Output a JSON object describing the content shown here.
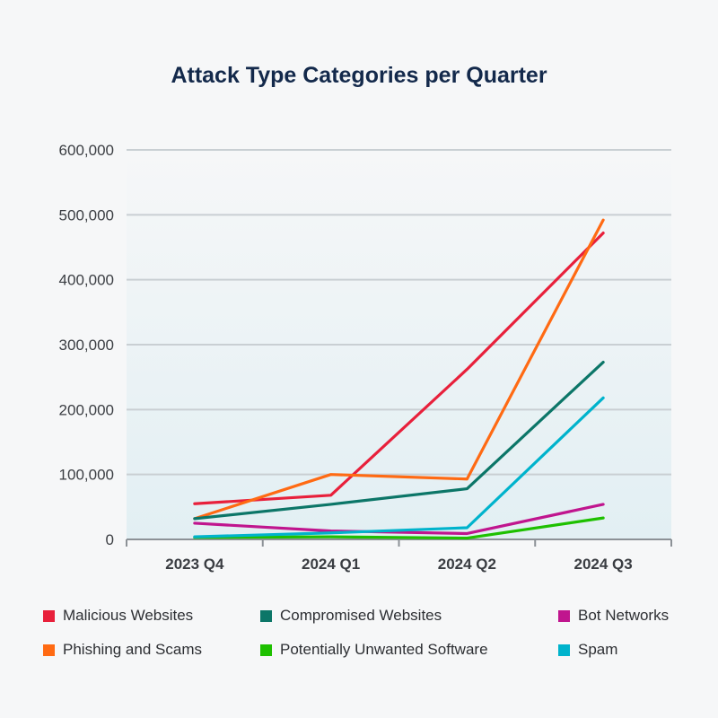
{
  "chart_data": {
    "type": "line",
    "title": "Attack Type Categories per Quarter",
    "categories": [
      "2023 Q4",
      "2024 Q1",
      "2024 Q2",
      "2024 Q3"
    ],
    "y_ticks": [
      "0",
      "100,000",
      "200,000",
      "300,000",
      "400,000",
      "500,000",
      "600,000"
    ],
    "ylim": [
      0,
      600000
    ],
    "grid": true,
    "legend_position": "bottom",
    "series": [
      {
        "name": "Malicious Websites",
        "color": "#e8203b",
        "values": [
          55000,
          68000,
          262000,
          472000
        ]
      },
      {
        "name": "Phishing and Scams",
        "color": "#ff6a13",
        "values": [
          32000,
          100000,
          93000,
          492000
        ]
      },
      {
        "name": "Compromised Websites",
        "color": "#0c7668",
        "values": [
          32000,
          54000,
          78000,
          273000
        ]
      },
      {
        "name": "Potentially Unwanted Software",
        "color": "#1ec000",
        "values": [
          3000,
          4000,
          2000,
          33000
        ]
      },
      {
        "name": "Bot Networks",
        "color": "#c0158e",
        "values": [
          25000,
          13000,
          9000,
          54000
        ]
      },
      {
        "name": "Spam",
        "color": "#00b3cc",
        "values": [
          4000,
          10000,
          18000,
          218000
        ]
      }
    ]
  }
}
